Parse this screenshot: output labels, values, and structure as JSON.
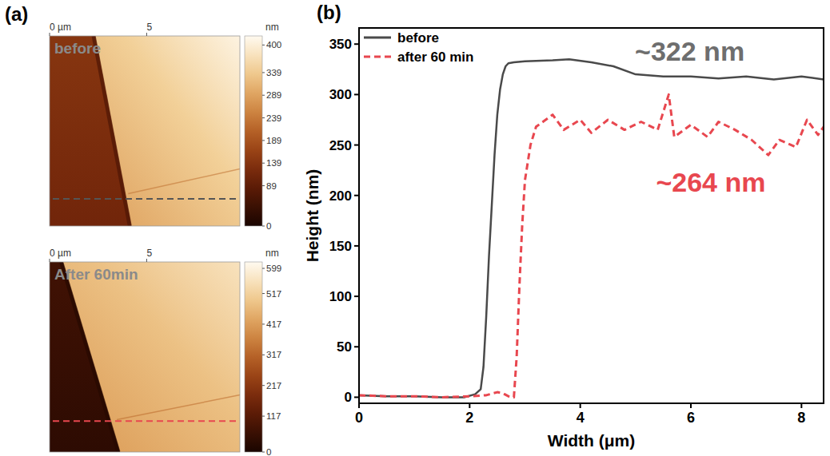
{
  "chart_data": [
    {
      "type": "afm_image",
      "panel_label": "(a)",
      "title": "before",
      "xlim": [
        0,
        9.8
      ],
      "ylim": [
        0,
        9.8
      ],
      "xticks": [
        {
          "value": 0,
          "label": "0 µm"
        },
        5
      ],
      "colorbar_label": "nm",
      "colorbar_lim": [
        0,
        420
      ],
      "colorbar_ticks": [
        400,
        339,
        289,
        239,
        189,
        139,
        89,
        0
      ],
      "profile_y": 8.4,
      "color": "#555555",
      "line_style": "dashed"
    },
    {
      "type": "afm_image",
      "title": "After 60min",
      "xlim": [
        0,
        9.8
      ],
      "ylim": [
        0,
        9.8
      ],
      "xticks": [
        {
          "value": 0,
          "label": "0 µm"
        },
        5
      ],
      "colorbar_label": "nm",
      "colorbar_lim": [
        0,
        620
      ],
      "colorbar_ticks": [
        599,
        517,
        417,
        317,
        217,
        117,
        0
      ],
      "profile_y": 8.2,
      "color": "#e8474f",
      "line_style": "dashed"
    },
    {
      "type": "line",
      "panel_label": "(b)",
      "x_label": "Width (μm)",
      "y_label": "Height (nm)",
      "xlim": [
        0,
        8.4
      ],
      "ylim": [
        -6,
        366
      ],
      "xticks": [
        0,
        2,
        4,
        6,
        8
      ],
      "yticks": [
        0,
        50,
        100,
        150,
        200,
        250,
        300,
        350
      ],
      "legend": "upper left",
      "series": [
        {
          "name": "before",
          "color": "#4a4a4a",
          "line_style": "solid",
          "x": [
            0,
            0.5,
            1,
            1.5,
            1.9,
            2.1,
            2.2,
            2.25,
            2.3,
            2.35,
            2.4,
            2.45,
            2.5,
            2.55,
            2.6,
            2.65,
            2.7,
            2.8,
            3.0,
            3.5,
            3.8,
            4.2,
            4.6,
            5.0,
            5.5,
            6.0,
            6.5,
            7.0,
            7.5,
            8.0,
            8.4
          ],
          "values": [
            2,
            1,
            1,
            0,
            0,
            3,
            8,
            30,
            80,
            140,
            190,
            240,
            280,
            305,
            320,
            328,
            331,
            332,
            333,
            334,
            335,
            332,
            328,
            320,
            318,
            318,
            316,
            318,
            315,
            318,
            315
          ]
        },
        {
          "name": "after 60 min",
          "color": "#e8474f",
          "line_style": "dashed",
          "x": [
            0,
            0.5,
            1,
            1.5,
            2.0,
            2.3,
            2.5,
            2.6,
            2.7,
            2.8,
            2.85,
            2.9,
            2.95,
            3.0,
            3.1,
            3.2,
            3.35,
            3.5,
            3.7,
            4.0,
            4.2,
            4.5,
            4.8,
            5.1,
            5.4,
            5.6,
            5.7,
            6.0,
            6.3,
            6.5,
            6.8,
            7.1,
            7.4,
            7.6,
            7.9,
            8.1,
            8.3,
            8.4
          ],
          "values": [
            2,
            1,
            1,
            0,
            1,
            2,
            5,
            4,
            1,
            0,
            40,
            110,
            170,
            215,
            250,
            268,
            274,
            280,
            265,
            275,
            262,
            275,
            265,
            273,
            265,
            300,
            258,
            270,
            258,
            273,
            265,
            255,
            240,
            255,
            248,
            275,
            260,
            268
          ]
        }
      ],
      "annotations": [
        {
          "text": "~322 nm",
          "x": 5.98,
          "y": 343,
          "color": "#6e6e6e"
        },
        {
          "text": "~264 nm",
          "x": 6.36,
          "y": 213,
          "color": "#e8474f"
        }
      ]
    }
  ]
}
